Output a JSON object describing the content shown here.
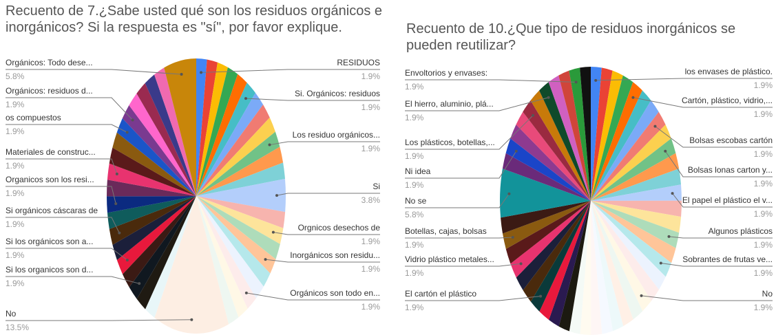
{
  "chart_data": [
    {
      "type": "pie",
      "title": "Recuento de 7.¿Sabe usted qué son los residuos orgánicos e inorgánicos? Si la respuesta es \"sí\", por favor explique.",
      "categories": [
        "RESIDUOS",
        null,
        null,
        null,
        null,
        "Si. Orgánicos: residuos",
        null,
        null,
        null,
        "Los residuo orgánicos...",
        null,
        null,
        "Si",
        null,
        "Orgnicos desechos de",
        null,
        "Inorgánicos son residu...",
        null,
        null,
        "Orgánicos son todo en...",
        null,
        null,
        "No",
        null,
        null,
        "Si los organicos son d...",
        null,
        "Si los orgánicos son a...",
        null,
        "Si orgánicos cáscaras de",
        null,
        "Organicos son los resi...",
        null,
        "Materiales de construc...",
        null,
        null,
        "os compuestos",
        "Orgánicos: residuos d...",
        null,
        null,
        null,
        null,
        "Orgánicos: Todo dese..."
      ],
      "values": [
        1.9,
        1.9,
        1.9,
        1.9,
        1.9,
        1.9,
        1.9,
        1.9,
        1.9,
        1.9,
        1.9,
        1.9,
        3.8,
        1.9,
        1.9,
        1.9,
        1.9,
        1.9,
        1.9,
        1.9,
        1.9,
        1.9,
        13.5,
        1.9,
        1.9,
        1.9,
        1.9,
        1.9,
        1.9,
        1.9,
        1.9,
        1.9,
        1.9,
        1.9,
        1.9,
        1.9,
        1.9,
        1.9,
        1.9,
        1.9,
        1.9,
        1.9,
        5.8
      ],
      "value_labels": [
        "1.9%",
        null,
        null,
        null,
        null,
        "1.9%",
        null,
        null,
        null,
        "1.9%",
        null,
        null,
        "3.8%",
        null,
        "1.9%",
        null,
        "1.9%",
        null,
        null,
        "1.9%",
        null,
        null,
        "13.5%",
        null,
        null,
        "1.9%",
        null,
        "1.9%",
        null,
        "1.9%",
        null,
        "1.9%",
        null,
        "1.9%",
        null,
        null,
        "1.9%",
        "1.9%",
        null,
        null,
        null,
        null,
        "5.8%"
      ],
      "colors": [
        "#4285f4",
        "#ea4335",
        "#fbbc04",
        "#34a853",
        "#ff6d01",
        "#46bdc6",
        "#7baaf7",
        "#f07b72",
        "#fcd04f",
        "#71c287",
        "#ff994d",
        "#7ed1d7",
        "#b3cefb",
        "#f7b4ae",
        "#fde49b",
        "#aedcba",
        "#ffc599",
        "#b5e8eb",
        "#ecf3fe",
        "#fdeceb",
        "#fff8e6",
        "#eef7f1",
        "#fdeee3",
        "#e8f6f8",
        "#1f1a12",
        "#101820",
        "#3b1a14",
        "#e8193c",
        "#1b1f3a",
        "#4a2a0c",
        "#0f5c5c",
        "#0b2a80",
        "#6a2a5a",
        "#e8336f",
        "#5a1a1a",
        "#8a5a10",
        "#1a55c8",
        "#7a3a90",
        "#ff66cc",
        "#9a2a50",
        "#3a3a8a",
        "#f06ab0",
        "#c8860a"
      ]
    },
    {
      "type": "pie",
      "title": "Recuento de 10.¿Que tipo de residuos inorgánicos se pueden reutilizar?",
      "categories": [
        "los envases de plástico.",
        null,
        null,
        null,
        "Cartón, plástico, vidrio,...",
        null,
        null,
        "Bolsas escobas cartón",
        null,
        "Bolsas lonas carton y...",
        null,
        null,
        "El papel el plástico el v...",
        null,
        null,
        "Algunos plásticos",
        null,
        "Sobrantes de frutas ve...",
        null,
        null,
        "No",
        null,
        null,
        null,
        null,
        null,
        null,
        null,
        null,
        null,
        null,
        "El cartón el plástico",
        null,
        null,
        "Vidrio plástico metales...",
        null,
        "Botellas, cajas, bolsas",
        null,
        "No se",
        null,
        "Ni idea",
        null,
        null,
        "Los plásticos, botellas,...",
        null,
        "El hierro, aluminio,  plá...",
        null,
        null,
        "Envoltorios y envases:",
        null
      ],
      "values": [
        1.9,
        1.9,
        1.9,
        1.9,
        1.9,
        1.9,
        1.9,
        1.9,
        1.9,
        1.9,
        1.9,
        1.9,
        1.9,
        1.9,
        1.9,
        1.9,
        1.9,
        1.9,
        1.9,
        1.9,
        1.9,
        1.9,
        1.9,
        1.9,
        1.9,
        1.9,
        1.9,
        1.9,
        1.9,
        1.9,
        1.9,
        1.9,
        1.9,
        1.9,
        1.9,
        1.9,
        1.9,
        1.9,
        5.8,
        1.9,
        1.9,
        1.9,
        1.9,
        1.9,
        1.9,
        1.9,
        1.9,
        1.9,
        1.9,
        1.9
      ],
      "value_labels": [
        "1.9%",
        null,
        null,
        null,
        "1.9%",
        null,
        null,
        "1.9%",
        null,
        "1.9%",
        null,
        null,
        "1.9%",
        null,
        null,
        "1.9%",
        null,
        "1.9%",
        null,
        null,
        "1.9%",
        null,
        null,
        null,
        null,
        null,
        null,
        null,
        null,
        null,
        null,
        "1.9%",
        null,
        null,
        "1.9%",
        null,
        "1.9%",
        null,
        "5.8%",
        null,
        "1.9%",
        null,
        null,
        "1.9%",
        null,
        "1.9%",
        null,
        null,
        "1.9%",
        null
      ],
      "colors": [
        "#4285f4",
        "#ea4335",
        "#fbbc04",
        "#34a853",
        "#ff6d01",
        "#46bdc6",
        "#7baaf7",
        "#f07b72",
        "#fcd04f",
        "#71c287",
        "#ff994d",
        "#7ed1d7",
        "#b3cefb",
        "#f7b4ae",
        "#fde49b",
        "#aedcba",
        "#ffc599",
        "#b5e8eb",
        "#ecf3fe",
        "#fdeceb",
        "#fff8e6",
        "#eef7f1",
        "#fff0e6",
        "#edf9fa",
        "#f5f9ff",
        "#fef6f5",
        "#fffbf0",
        "#f4faf6",
        "#1c1a10",
        "#2a1a50",
        "#e8193c",
        "#0a3a3a",
        "#4a2a0c",
        "#1b1f3a",
        "#e8336f",
        "#5a1a1a",
        "#8a5a10",
        "#3b1a14",
        "#12939a",
        "#6a2a7a",
        "#1a45c8",
        "#8e3a90",
        "#e84a7a",
        "#9a2a40",
        "#c87a0a",
        "#0f4a2a",
        "#d060c0",
        "#d0453a",
        "#2a9a3a",
        "#111111"
      ]
    }
  ]
}
